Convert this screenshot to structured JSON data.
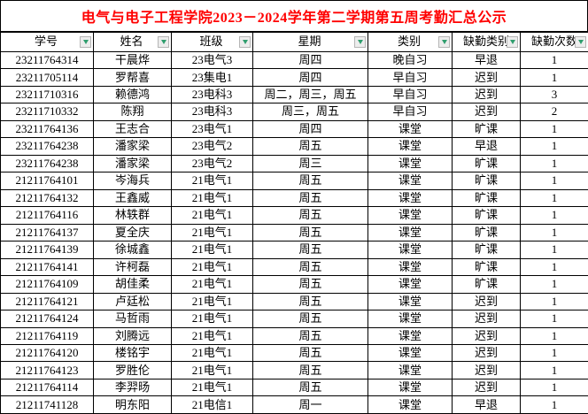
{
  "title": "电气与电子工程学院2023－2024学年第二学期第五周考勤汇总公示",
  "colors": {
    "title_text": "#ff0000",
    "filter_arrow": "#2f9e6e",
    "grid_line": "#000000",
    "filter_button_bg": "#ededed"
  },
  "table": {
    "columns": [
      {
        "key": "student-id",
        "label": "学号"
      },
      {
        "key": "name",
        "label": "姓名"
      },
      {
        "key": "class",
        "label": "班级"
      },
      {
        "key": "weekday",
        "label": "星期"
      },
      {
        "key": "category",
        "label": "类别"
      },
      {
        "key": "absence-type",
        "label": "缺勤类别"
      },
      {
        "key": "absence-count",
        "label": "缺勤次数"
      }
    ],
    "rows": [
      [
        "23211764314",
        "干晨烨",
        "23电气3",
        "周四",
        "晚自习",
        "早退",
        "1"
      ],
      [
        "23211705114",
        "罗帮喜",
        "23集电1",
        "周四",
        "早自习",
        "迟到",
        "1"
      ],
      [
        "23211710316",
        "赖德鸿",
        "23电科3",
        "周二，周三，周五",
        "早自习",
        "迟到",
        "3"
      ],
      [
        "23211710332",
        "陈翔",
        "23电科3",
        "周三，周五",
        "早自习",
        "迟到",
        "2"
      ],
      [
        "23211764136",
        "王志合",
        "23电气1",
        "周四",
        "课堂",
        "旷课",
        "1"
      ],
      [
        "23211764238",
        "潘家梁",
        "23电气2",
        "周五",
        "课堂",
        "早退",
        "1"
      ],
      [
        "23211764238",
        "潘家梁",
        "23电气2",
        "周三",
        "课堂",
        "旷课",
        "1"
      ],
      [
        "21211764101",
        "岑海兵",
        "21电气1",
        "周五",
        "课堂",
        "旷课",
        "1"
      ],
      [
        "21211764132",
        "王鑫威",
        "21电气1",
        "周五",
        "课堂",
        "旷课",
        "1"
      ],
      [
        "21211764116",
        "林轶群",
        "21电气1",
        "周五",
        "课堂",
        "旷课",
        "1"
      ],
      [
        "21211764137",
        "夏全庆",
        "21电气1",
        "周五",
        "课堂",
        "旷课",
        "1"
      ],
      [
        "21211764139",
        "徐城鑫",
        "21电气1",
        "周五",
        "课堂",
        "旷课",
        "1"
      ],
      [
        "21211764141",
        "许柯磊",
        "21电气1",
        "周五",
        "课堂",
        "旷课",
        "1"
      ],
      [
        "21211764109",
        "胡佳柔",
        "21电气1",
        "周五",
        "课堂",
        "旷课",
        "1"
      ],
      [
        "21211764121",
        "卢廷松",
        "21电气1",
        "周五",
        "课堂",
        "迟到",
        "1"
      ],
      [
        "21211764124",
        "马哲雨",
        "21电气1",
        "周五",
        "课堂",
        "迟到",
        "1"
      ],
      [
        "21211764119",
        "刘腾远",
        "21电气1",
        "周五",
        "课堂",
        "迟到",
        "1"
      ],
      [
        "21211764120",
        "楼铭宇",
        "21电气1",
        "周五",
        "课堂",
        "迟到",
        "1"
      ],
      [
        "21211764123",
        "罗胜伦",
        "21电气1",
        "周五",
        "课堂",
        "迟到",
        "1"
      ],
      [
        "21211764114",
        "李羿旸",
        "21电气1",
        "周五",
        "课堂",
        "迟到",
        "1"
      ],
      [
        "21211741128",
        "明东阳",
        "21电信1",
        "周一",
        "课堂",
        "早退",
        "1"
      ]
    ]
  }
}
